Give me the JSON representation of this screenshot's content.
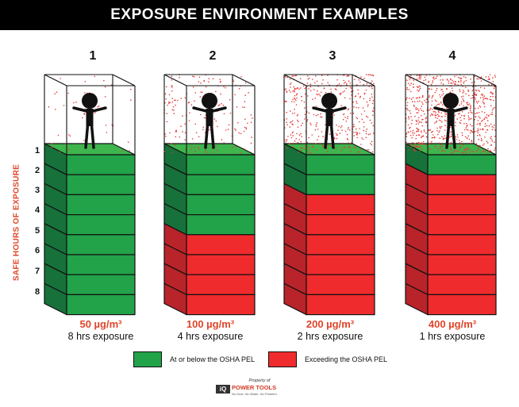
{
  "title": "EXPOSURE ENVIRONMENT EXAMPLES",
  "axis_title": "SAFE HOURS OF EXPOSURE",
  "hour_labels": [
    "1",
    "2",
    "3",
    "4",
    "5",
    "6",
    "7",
    "8"
  ],
  "colors": {
    "green": "#22a249",
    "green_side": "#17713a",
    "green_top": "#3fb54d",
    "red": "#ef2b2d",
    "red_side": "#b8242a",
    "accent_text": "#e0452a",
    "dust": "#e53935"
  },
  "scenarios": [
    {
      "number": "1",
      "concentration": "50 µg/m³",
      "exposure": "8 hrs exposure",
      "safe_hours": 8,
      "total_hours": 8,
      "dust_level": 1
    },
    {
      "number": "2",
      "concentration": "100 µg/m³",
      "exposure": "4 hrs exposure",
      "safe_hours": 4,
      "total_hours": 8,
      "dust_level": 2
    },
    {
      "number": "3",
      "concentration": "200 µg/m³",
      "exposure": "2 hrs exposure",
      "safe_hours": 2,
      "total_hours": 8,
      "dust_level": 3
    },
    {
      "number": "4",
      "concentration": "400 µg/m³",
      "exposure": "1 hrs exposure",
      "safe_hours": 1,
      "total_hours": 8,
      "dust_level": 4
    }
  ],
  "legend": {
    "safe_label": "At or below the OSHA PEL",
    "exceed_label": "Exceeding the OSHA PEL"
  },
  "footer": {
    "property_of": "Property of",
    "logo_mark": "iQ",
    "logo_text": "POWER TOOLS",
    "tagline": "No Dust. No Water. No Problem."
  }
}
